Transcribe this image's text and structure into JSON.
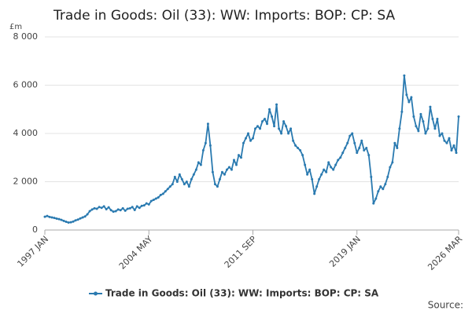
{
  "chart_data": {
    "type": "line",
    "title": "Trade in Goods: Oil (33): WW: Imports: BOP: CP: SA",
    "y_unit": "£m",
    "source": "Source:",
    "categories": [
      "1997 JAN",
      null,
      null,
      null,
      null,
      null,
      null,
      null,
      null,
      null,
      null,
      null,
      null,
      null,
      null,
      null,
      null,
      null,
      null,
      null,
      null,
      null,
      null,
      null,
      null,
      null,
      null,
      null,
      null,
      null,
      null,
      null,
      null,
      null,
      null,
      null,
      null,
      null,
      null,
      null,
      null,
      null,
      null,
      null,
      "2004 MAY",
      null,
      null,
      null,
      null,
      null,
      null,
      null,
      null,
      null,
      null,
      null,
      null,
      null,
      null,
      null,
      null,
      null,
      null,
      null,
      null,
      null,
      null,
      null,
      null,
      null,
      null,
      null,
      null,
      null,
      null,
      null,
      null,
      null,
      null,
      null,
      null,
      null,
      null,
      null,
      null,
      null,
      null,
      null,
      "2011 SEP",
      null,
      null,
      null,
      null,
      null,
      null,
      null,
      null,
      null,
      null,
      null,
      null,
      null,
      null,
      null,
      null,
      null,
      null,
      null,
      null,
      null,
      null,
      null,
      null,
      null,
      null,
      null,
      null,
      null,
      null,
      null,
      null,
      null,
      null,
      null,
      null,
      null,
      null,
      null,
      null,
      null,
      null,
      null,
      "2019 JAN",
      null,
      null,
      null,
      null,
      null,
      null,
      null,
      null,
      null,
      null,
      null,
      null,
      null,
      null,
      null,
      null,
      null,
      null,
      null,
      null,
      null,
      null,
      null,
      null,
      null,
      null,
      null,
      null,
      null,
      null,
      null,
      null,
      null,
      null,
      null,
      null,
      null,
      null,
      null,
      null,
      null,
      null,
      "2026 MAR"
    ],
    "series": [
      {
        "name": "Trade in Goods: Oil (33): WW: Imports: BOP: CP: SA",
        "color": "#2a7ab0",
        "values": [
          550,
          580,
          540,
          520,
          500,
          470,
          450,
          420,
          380,
          340,
          310,
          320,
          350,
          400,
          430,
          480,
          520,
          560,
          650,
          780,
          850,
          900,
          880,
          950,
          920,
          980,
          860,
          940,
          820,
          760,
          780,
          850,
          820,
          900,
          800,
          880,
          900,
          950,
          830,
          980,
          920,
          1000,
          1020,
          1100,
          1060,
          1200,
          1250,
          1300,
          1350,
          1450,
          1500,
          1600,
          1700,
          1800,
          1900,
          2200,
          2000,
          2300,
          2100,
          1900,
          2000,
          1800,
          2100,
          2300,
          2500,
          2800,
          2700,
          3300,
          3600,
          4400,
          3500,
          2400,
          1900,
          1800,
          2100,
          2400,
          2300,
          2500,
          2600,
          2500,
          2900,
          2700,
          3100,
          3000,
          3600,
          3800,
          4000,
          3700,
          3800,
          4200,
          4300,
          4200,
          4500,
          4600,
          4400,
          5000,
          4700,
          4300,
          5200,
          4200,
          4000,
          4500,
          4300,
          4000,
          4200,
          3700,
          3500,
          3400,
          3300,
          3100,
          2700,
          2300,
          2500,
          2100,
          1500,
          1800,
          2100,
          2300,
          2500,
          2400,
          2800,
          2600,
          2500,
          2700,
          2900,
          3000,
          3200,
          3400,
          3600,
          3900,
          4000,
          3600,
          3200,
          3400,
          3700,
          3300,
          3400,
          3100,
          2200,
          1100,
          1300,
          1600,
          1800,
          1700,
          1900,
          2200,
          2600,
          2800,
          3600,
          3400,
          4200,
          4900,
          6400,
          5600,
          5300,
          5500,
          4700,
          4300,
          4100,
          4800,
          4500,
          4000,
          4200,
          5100,
          4600,
          4200,
          4600,
          3900,
          4000,
          3700,
          3600,
          3800,
          3300,
          3500,
          3200,
          4700
        ]
      }
    ],
    "ylim": [
      0,
      8000
    ],
    "yticks": [
      {
        "value": 0,
        "label": "0"
      },
      {
        "value": 2000,
        "label": "2 000"
      },
      {
        "value": 4000,
        "label": "4 000"
      },
      {
        "value": 6000,
        "label": "6 000"
      },
      {
        "value": 8000,
        "label": "8 000"
      }
    ],
    "grid": true
  }
}
